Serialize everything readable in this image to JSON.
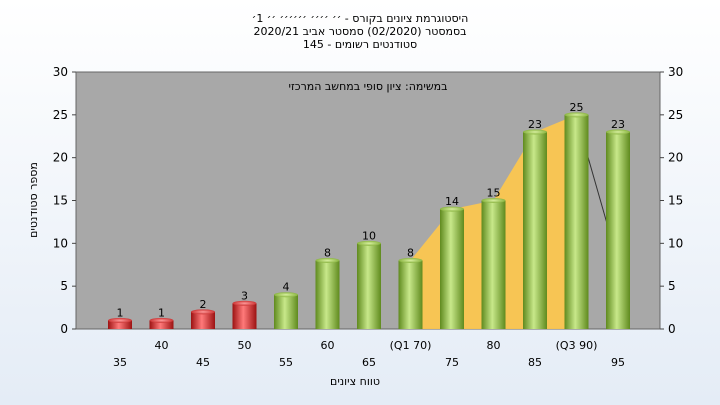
{
  "chart_data": {
    "type": "bar",
    "title_lines": [
      "היסטוגרמת ציונים בקורס - ׳׳ ׳׳׳׳ ׳׳׳׳׳׳ ׳׳ 1׳",
      "בסמסטר (02/2020) סמסטר אביב 2020/21",
      "סטודנטים רשומים - 145"
    ],
    "annotation": "במשימה: ציון סופי במחשב המרכזי",
    "xlabel": "טווח ציונים",
    "ylabel": "מספר סטודנטים",
    "ylim": [
      0,
      30
    ],
    "yticks": [
      0,
      5,
      10,
      15,
      20,
      25,
      30
    ],
    "categories": [
      "35",
      "40",
      "45",
      "50",
      "55",
      "60",
      "65",
      "(Q1 70)",
      "75",
      "80",
      "85",
      "(Q3 90)",
      "95"
    ],
    "values": [
      1,
      1,
      2,
      3,
      4,
      8,
      10,
      8,
      14,
      15,
      23,
      25,
      23
    ],
    "bar_colors": [
      "red",
      "red",
      "red",
      "red",
      "green",
      "green",
      "green",
      "green",
      "green",
      "green",
      "green",
      "green",
      "green"
    ],
    "interquartile_band": {
      "from": "(Q1 70)",
      "to": "(Q3 90)",
      "color": "#ffc84a"
    },
    "grid": false,
    "plot_background": "#a8a8a8",
    "colors": {
      "red": "#d42a2a",
      "green": "#8fba3f"
    }
  }
}
